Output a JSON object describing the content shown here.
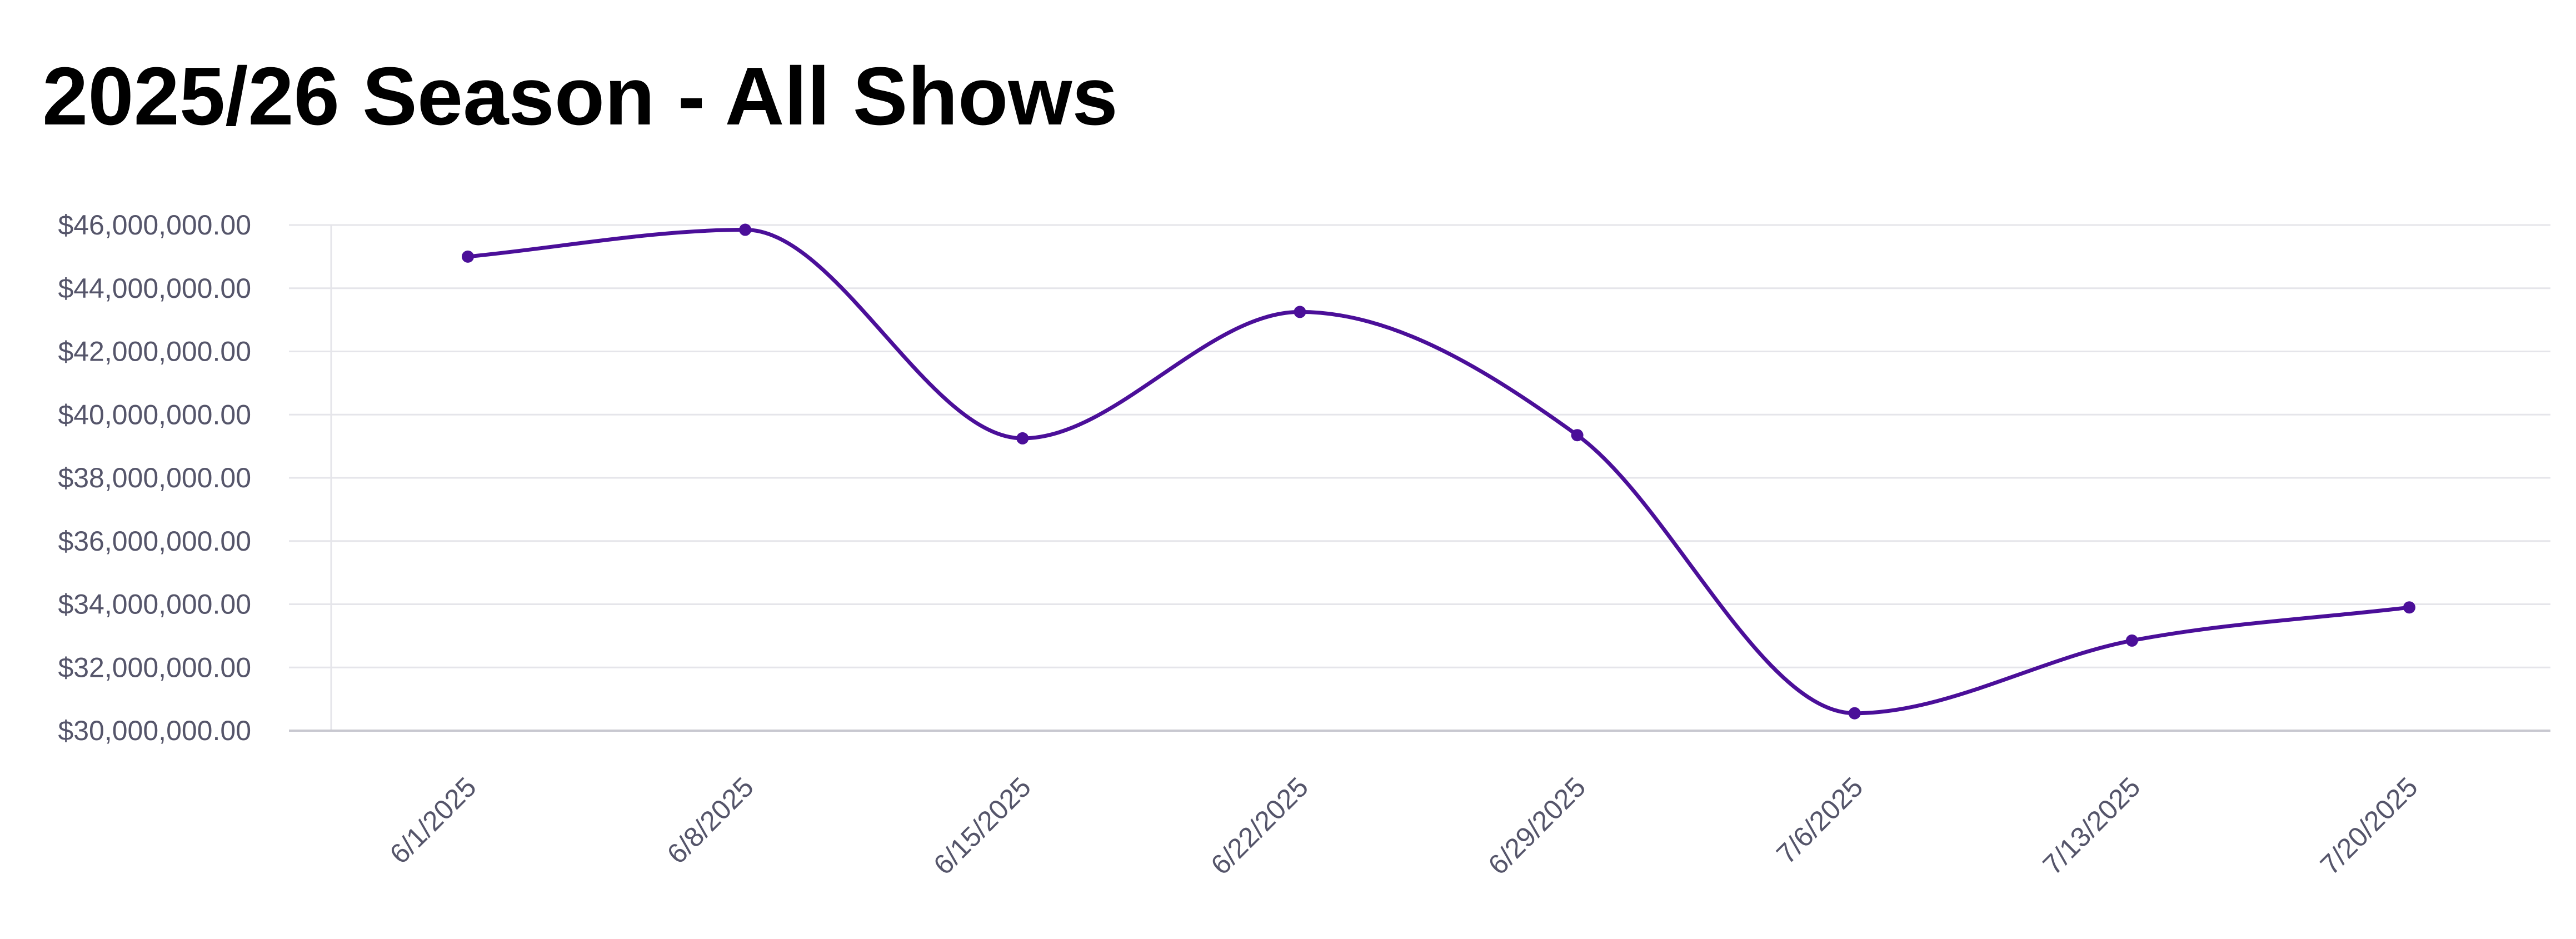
{
  "chart_data": {
    "type": "line",
    "title": "2025/26 Season - All Shows",
    "xlabel": "",
    "ylabel": "",
    "categories": [
      "6/1/2025",
      "6/8/2025",
      "6/15/2025",
      "6/22/2025",
      "6/29/2025",
      "7/6/2025",
      "7/13/2025",
      "7/20/2025"
    ],
    "series": [
      {
        "values": [
          45000000,
          45850000,
          39250000,
          43250000,
          39350000,
          30550000,
          32850000,
          33900000
        ],
        "color": "#4b0f99"
      }
    ],
    "ylim": [
      30000000,
      46000000
    ],
    "yticks": [
      "$30,000,000.00",
      "$32,000,000.00",
      "$34,000,000.00",
      "$36,000,000.00",
      "$38,000,000.00",
      "$40,000,000.00",
      "$42,000,000.00",
      "$44,000,000.00",
      "$46,000,000.00"
    ],
    "grid": true,
    "legend": "none",
    "curve": "smooth",
    "markers": true,
    "colors": {
      "line": "#4b0f99",
      "grid": "#e5e5ea",
      "axis": "#c8c8d0",
      "tick_text": "#55556a"
    }
  }
}
